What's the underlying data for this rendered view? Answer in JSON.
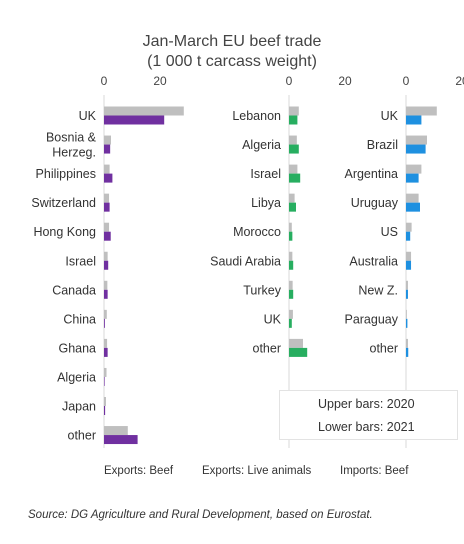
{
  "title_line1": "Jan-March EU beef trade",
  "title_line2": "(1 000 t carcass weight)",
  "source": "Source: DG Agriculture and Rural Development, based on Eurostat.",
  "legend": {
    "upper": "Upper bars: 2020",
    "lower": "Lower bars: 2021"
  },
  "colors": {
    "y2020": "#bfbfbf",
    "exports_beef": "#7030a0",
    "exports_live": "#27ae60",
    "imports_beef": "#1e90e0"
  },
  "chart_data": [
    {
      "type": "bar",
      "orientation": "horizontal",
      "title": "Exports: Beef",
      "xticks": [
        "0",
        "20"
      ],
      "xlim": [
        0,
        45
      ],
      "categories": [
        "UK",
        "Bosnia & Herzeg.",
        "Philippines",
        "Switzerland",
        "Hong Kong",
        "Israel",
        "Canada",
        "China",
        "Ghana",
        "Algeria",
        "Japan",
        "other"
      ],
      "series": [
        {
          "name": "2020",
          "values": [
            28.5,
            2.5,
            2.0,
            1.8,
            1.8,
            1.3,
            1.2,
            1.0,
            1.1,
            0.9,
            0.7,
            8.5
          ]
        },
        {
          "name": "2021",
          "values": [
            21.5,
            2.2,
            3.0,
            2.0,
            2.4,
            1.5,
            1.3,
            0.3,
            1.3,
            0.1,
            0.4,
            12.0
          ]
        }
      ]
    },
    {
      "type": "bar",
      "orientation": "horizontal",
      "title": "Exports: Live animals",
      "xticks": [
        "0",
        "20"
      ],
      "xlim": [
        0,
        45
      ],
      "categories": [
        "Lebanon",
        "Algeria",
        "Israel",
        "Libya",
        "Morocco",
        "Saudi Arabia",
        "Turkey",
        "UK",
        "other"
      ],
      "series": [
        {
          "name": "2020",
          "values": [
            3.5,
            2.8,
            3.0,
            2.0,
            1.0,
            1.2,
            1.3,
            1.4,
            5.0
          ]
        },
        {
          "name": "2021",
          "values": [
            3.0,
            3.5,
            4.0,
            2.5,
            1.2,
            1.5,
            1.5,
            1.0,
            6.5
          ]
        }
      ]
    },
    {
      "type": "bar",
      "orientation": "horizontal",
      "title": "Imports: Beef",
      "xticks": [
        "0",
        "20"
      ],
      "xlim": [
        0,
        45
      ],
      "categories": [
        "UK",
        "Brazil",
        "Argentina",
        "Uruguay",
        "US",
        "Australia",
        "New Z.",
        "Paraguay",
        "other"
      ],
      "series": [
        {
          "name": "2020",
          "values": [
            11.0,
            7.5,
            5.5,
            4.5,
            2.0,
            1.8,
            0.7,
            0.3,
            0.7
          ]
        },
        {
          "name": "2021",
          "values": [
            5.5,
            7.0,
            4.5,
            5.0,
            1.5,
            1.8,
            0.7,
            0.5,
            0.8
          ]
        }
      ]
    }
  ]
}
